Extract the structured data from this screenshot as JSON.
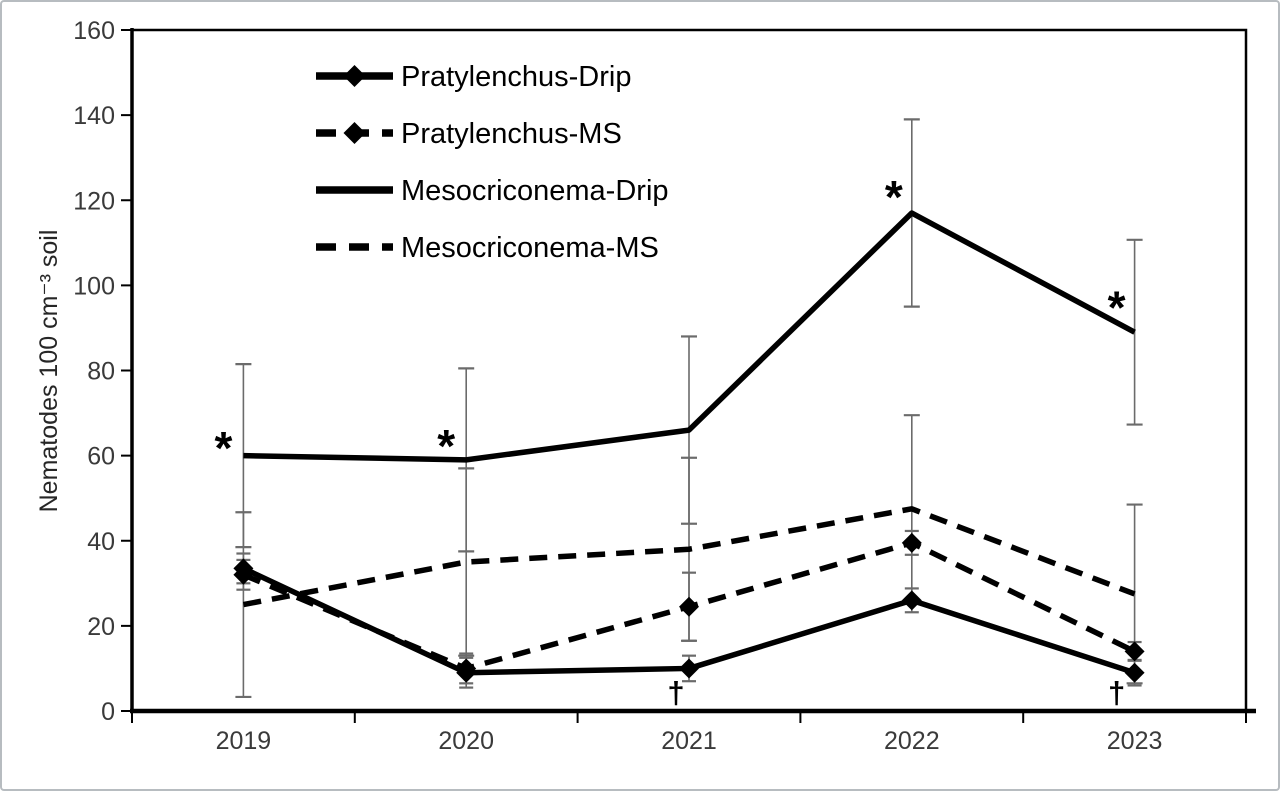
{
  "figure": {
    "background": "#ffffff",
    "frame_border_color": "#b7bcc0"
  },
  "chart_data": {
    "type": "line",
    "title": "",
    "xlabel": "",
    "ylabel": "Nematodes 100 cm⁻³ soil",
    "ylim": [
      0,
      160
    ],
    "yticks": [
      0,
      20,
      40,
      60,
      80,
      100,
      120,
      140,
      160
    ],
    "categories": [
      "2019",
      "2020",
      "2021",
      "2022",
      "2023"
    ],
    "grid": false,
    "legend_position": "top-left-inside",
    "series": [
      {
        "name": "Pratylenchus-Drip",
        "line_style": "solid",
        "marker": "diamond",
        "color": "#000000",
        "values": [
          33.5,
          9,
          10,
          26,
          9
        ],
        "error": [
          3.5,
          3.5,
          3,
          2.8,
          3
        ]
      },
      {
        "name": "Pratylenchus-MS",
        "line_style": "dashed",
        "marker": "diamond",
        "color": "#000000",
        "values": [
          32,
          10,
          24.5,
          39.5,
          14
        ],
        "error": [
          3.5,
          3.5,
          8,
          2.8,
          2.2
        ]
      },
      {
        "name": "Mesocriconema-Drip",
        "line_style": "solid",
        "marker": "none",
        "color": "#000000",
        "values": [
          60,
          59,
          66,
          117,
          89
        ],
        "error": [
          21.5,
          21.5,
          22,
          22,
          21.7
        ]
      },
      {
        "name": "Mesocriconema-MS",
        "line_style": "dashed",
        "marker": "none",
        "color": "#000000",
        "values": [
          25,
          35,
          38,
          47.5,
          27.5
        ],
        "error": [
          21.7,
          22,
          21.5,
          22,
          21
        ]
      }
    ],
    "annotations": [
      {
        "symbol": "*",
        "category": "2019",
        "value": 63,
        "dx": -20
      },
      {
        "symbol": "*",
        "category": "2020",
        "value": 63.5,
        "dx": -20
      },
      {
        "symbol": "*",
        "category": "2022",
        "value": 122,
        "dx": -18
      },
      {
        "symbol": "*",
        "category": "2023",
        "value": 96,
        "dx": -18
      },
      {
        "symbol": "†",
        "category": "2021",
        "value": 4.5,
        "dx": -13
      },
      {
        "symbol": "†",
        "category": "2023",
        "value": 4.5,
        "dx": -18
      }
    ],
    "colors": {
      "line": "#000000",
      "error_bar": "#6b6b6b",
      "axis": "#000000",
      "tick_label": "#3a3a3a",
      "legend_text": "#000000"
    }
  }
}
